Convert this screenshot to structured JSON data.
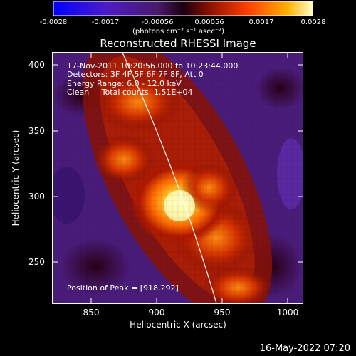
{
  "colorbar": {
    "ticks": [
      "-0.0028",
      "-0.0017",
      "-0.00056",
      "0.00056",
      "0.0017",
      "0.0028"
    ],
    "units": "(photons cm⁻² s⁻¹ asec⁻²)"
  },
  "title": "Reconstructed RHESSI Image",
  "annotations": {
    "time": "17-Nov-2011 10:20:56.000 to 10:23:44.000",
    "detectors": "Detectors: 3F 4F 5F 6F 7F 8F, Att 0",
    "energy": "Energy Range: 6.0 - 12.0 keV",
    "clean": "Clean     Total counts: 1.51E+04",
    "peak": "Position of Peak = [918,292]"
  },
  "axes": {
    "ylabel": "Heliocentric Y (arcsec)",
    "xlabel": "Heliocentric X (arcsec)",
    "yticks": [
      "400",
      "350",
      "300",
      "250"
    ],
    "xticks": [
      "850",
      "900",
      "950",
      "1000"
    ]
  },
  "footer_date": "16-May-2022 07:20"
}
